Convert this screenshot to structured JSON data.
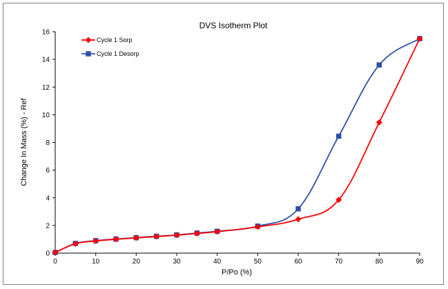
{
  "chart_data": {
    "type": "line",
    "title": "DVS Isotherm Plot",
    "xlabel": "P/Po (%)",
    "ylabel": "Change In Mass (%) - Ref",
    "xlim": [
      0,
      90
    ],
    "ylim": [
      0,
      16
    ],
    "xticks": [
      0,
      10,
      20,
      30,
      40,
      50,
      60,
      70,
      80,
      90
    ],
    "yticks": [
      0,
      2,
      4,
      6,
      8,
      10,
      12,
      14,
      16
    ],
    "grid": false,
    "legend_position": "top-left",
    "series": [
      {
        "name": "Cycle 1 Sorp",
        "color": "#ff0000",
        "marker": "diamond",
        "x": [
          0,
          5,
          10,
          15,
          20,
          25,
          30,
          35,
          40,
          50,
          60,
          70,
          80,
          90
        ],
        "y": [
          0.05,
          0.68,
          0.88,
          1.0,
          1.1,
          1.2,
          1.3,
          1.42,
          1.55,
          1.9,
          2.45,
          3.85,
          9.45,
          15.5
        ]
      },
      {
        "name": "Cycle 1 Desorp",
        "color": "#2e4fa8",
        "marker": "square",
        "x": [
          0,
          5,
          10,
          15,
          20,
          25,
          30,
          35,
          40,
          50,
          60,
          70,
          80,
          90
        ],
        "y": [
          0.05,
          0.7,
          0.9,
          1.02,
          1.12,
          1.22,
          1.32,
          1.45,
          1.58,
          1.95,
          3.2,
          8.45,
          13.6,
          15.5
        ]
      }
    ]
  }
}
